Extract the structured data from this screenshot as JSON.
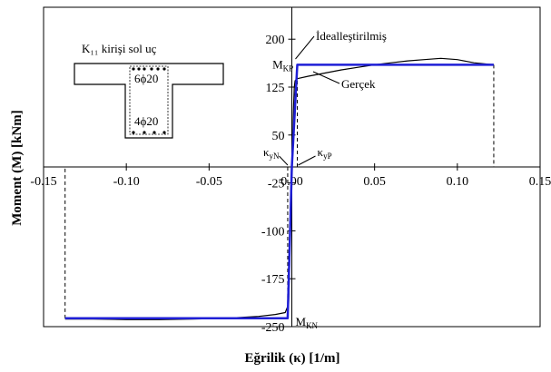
{
  "chart_data": {
    "type": "line",
    "xlabel": "Eğrilik (κ) [1/m]",
    "ylabel": "Moment (M) [kNm]",
    "xlim": [
      -0.15,
      0.15
    ],
    "ylim": [
      -250,
      250
    ],
    "x_ticks": [
      "-0.15",
      "-0.10",
      "-0.05",
      "0.00",
      "0.05",
      "0.10",
      "0.15"
    ],
    "y_ticks": [
      "200",
      "125",
      "50",
      "-25",
      "-100",
      "-175",
      "-250"
    ],
    "y_tick_values": [
      200,
      125,
      50,
      -25,
      -100,
      -175,
      -250
    ],
    "grid": false,
    "series": [
      {
        "name": "Gerçek",
        "color": "#000000",
        "points": [
          [
            -0.137,
            -238
          ],
          [
            -0.12,
            -238
          ],
          [
            -0.1,
            -239
          ],
          [
            -0.08,
            -239
          ],
          [
            -0.06,
            -238
          ],
          [
            -0.04,
            -237
          ],
          [
            -0.02,
            -234
          ],
          [
            -0.01,
            -231
          ],
          [
            -0.004,
            -228
          ],
          [
            -0.002,
            -215
          ],
          [
            -0.0015,
            -170
          ],
          [
            -0.001,
            -100
          ],
          [
            -0.0005,
            -40
          ],
          [
            0.0,
            0
          ],
          [
            0.0005,
            40
          ],
          [
            0.001,
            90
          ],
          [
            0.0015,
            125
          ],
          [
            0.002,
            135
          ],
          [
            0.003,
            138
          ],
          [
            0.01,
            142
          ],
          [
            0.02,
            147
          ],
          [
            0.03,
            152
          ],
          [
            0.04,
            156
          ],
          [
            0.05,
            160
          ],
          [
            0.06,
            163
          ],
          [
            0.07,
            166
          ],
          [
            0.08,
            168
          ],
          [
            0.09,
            170
          ],
          [
            0.1,
            168
          ],
          [
            0.11,
            163
          ],
          [
            0.122,
            160
          ]
        ]
      },
      {
        "name": "İdealleştirilmiş",
        "color": "#1f1fd6",
        "points": [
          [
            -0.137,
            -237
          ],
          [
            -0.0025,
            -237
          ],
          [
            0.0,
            0
          ],
          [
            0.0033,
            160
          ],
          [
            0.122,
            160
          ]
        ]
      }
    ],
    "annotations": {
      "idealized_label": "İdealleştirilmiş",
      "real_label": "Gerçek",
      "mkp_main": "M",
      "mkp_sub": "KP",
      "mkp_value": 160,
      "mkn_main": "M",
      "mkn_sub": "KN",
      "mkn_value": -237,
      "kyn_main": "κ",
      "kyn_sub": "yN",
      "kyn_value": -0.0025,
      "kyp_main": "κ",
      "kyp_sub": "yP",
      "kyp_value": 0.0033,
      "ultimate_pos_kappa": 0.122,
      "ultimate_neg_kappa": -0.137
    },
    "inset": {
      "title": "K₁₁ kirişi sol uç",
      "top_bars": "6ϕ20",
      "bottom_bars": "4ϕ20"
    }
  }
}
